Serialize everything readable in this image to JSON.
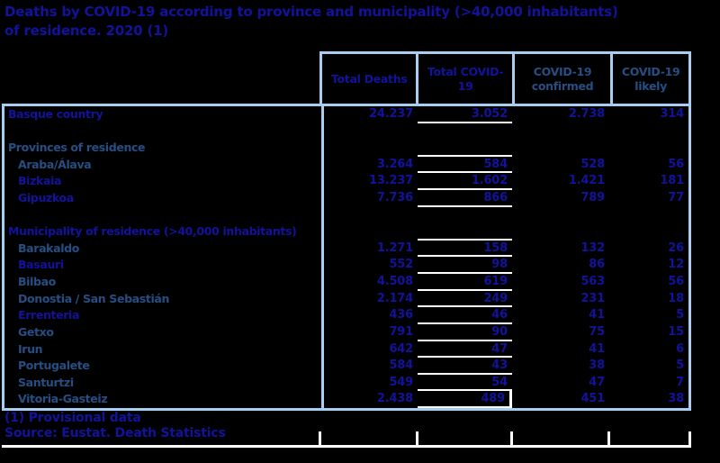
{
  "title": {
    "line1": "Deaths by COVID-19 according to province and municipality (>40,000 inhabitants)",
    "line2": "of residence. 2020 (1)"
  },
  "colors": {
    "bg": "#000000",
    "border": "#a9cdf0",
    "navy": "#12129b",
    "slate": "#274e82",
    "rule": "#ffffff"
  },
  "table": {
    "columns": [
      {
        "label": "Total Deaths",
        "tone": "navy"
      },
      {
        "label": "Total COVID-19",
        "tone": "navy"
      },
      {
        "label": "COVID-19 confirmed",
        "tone": "slate"
      },
      {
        "label": "COVID-19 likely",
        "tone": "slate"
      }
    ],
    "rows": [
      {
        "type": "data",
        "label": "Basque country",
        "tone": "navy",
        "indent": false,
        "values": [
          "24.237",
          "3.052",
          "2.738",
          "314"
        ],
        "underline": true
      },
      {
        "type": "spacer"
      },
      {
        "type": "section",
        "label": "Provinces of residence",
        "tone": "slate",
        "underline": true
      },
      {
        "type": "data",
        "label": "Araba/Álava",
        "tone": "slate",
        "indent": true,
        "values": [
          "3.264",
          "584",
          "528",
          "56"
        ],
        "underline": true
      },
      {
        "type": "data",
        "label": "Bizkaia",
        "tone": "navy",
        "indent": true,
        "values": [
          "13.237",
          "1.602",
          "1.421",
          "181"
        ],
        "underline": true
      },
      {
        "type": "data",
        "label": "Gipuzkoa",
        "tone": "navy",
        "indent": true,
        "values": [
          "7.736",
          "866",
          "789",
          "77"
        ],
        "underline": true
      },
      {
        "type": "spacer"
      },
      {
        "type": "section",
        "label": "Municipality of residence (>40,000 inhabitants)",
        "tone": "navy",
        "underline": true
      },
      {
        "type": "data",
        "label": "Barakaldo",
        "tone": "slate",
        "indent": true,
        "values": [
          "1.271",
          "158",
          "132",
          "26"
        ],
        "underline": true
      },
      {
        "type": "data",
        "label": "Basauri",
        "tone": "navy",
        "indent": true,
        "values": [
          "552",
          "98",
          "86",
          "12"
        ],
        "underline": true
      },
      {
        "type": "data",
        "label": "Bilbao",
        "tone": "slate",
        "indent": true,
        "values": [
          "4.508",
          "619",
          "563",
          "56"
        ],
        "underline": true
      },
      {
        "type": "data",
        "label": "Donostia / San Sebastián",
        "tone": "slate",
        "indent": true,
        "values": [
          "2.174",
          "249",
          "231",
          "18"
        ],
        "underline": true
      },
      {
        "type": "data",
        "label": "Errenteria",
        "tone": "navy",
        "indent": true,
        "values": [
          "436",
          "46",
          "41",
          "5"
        ],
        "underline": true
      },
      {
        "type": "data",
        "label": "Getxo",
        "tone": "slate",
        "indent": true,
        "values": [
          "791",
          "90",
          "75",
          "15"
        ],
        "underline": true
      },
      {
        "type": "data",
        "label": "Irun",
        "tone": "slate",
        "indent": true,
        "values": [
          "642",
          "47",
          "41",
          "6"
        ],
        "underline": true
      },
      {
        "type": "data",
        "label": "Portugalete",
        "tone": "slate",
        "indent": true,
        "values": [
          "584",
          "43",
          "38",
          "5"
        ],
        "underline": true
      },
      {
        "type": "data",
        "label": "Santurtzi",
        "tone": "slate",
        "indent": true,
        "values": [
          "549",
          "54",
          "47",
          "7"
        ],
        "underline": true
      },
      {
        "type": "data",
        "label": "Vitoria-Gasteiz",
        "tone": "slate",
        "indent": true,
        "values": [
          "2.438",
          "489",
          "451",
          "38"
        ],
        "underline": true,
        "select": true
      }
    ]
  },
  "footnote": "(1) Provisional data",
  "source": "Source: Eustat. Death Statistics"
}
